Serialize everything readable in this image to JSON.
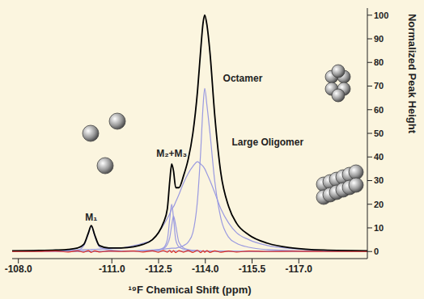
{
  "chart_data": {
    "type": "line",
    "x_label": "¹⁹F Chemical Shift (ppm)",
    "y_label": "Normalized Peak Height",
    "x": [
      -107.8,
      -108.5,
      -109.2,
      -109.6,
      -109.9,
      -110.1,
      -110.25,
      -110.34,
      -110.45,
      -110.6,
      -110.9,
      -111.3,
      -111.7,
      -112.0,
      -112.3,
      -112.5,
      -112.65,
      -112.78,
      -112.86,
      -112.92,
      -112.98,
      -113.05,
      -113.15,
      -113.3,
      -113.45,
      -113.6,
      -113.75,
      -113.85,
      -113.93,
      -113.98,
      -114.05,
      -114.15,
      -114.3,
      -114.5,
      -114.75,
      -115.0,
      -115.4,
      -116.0,
      -116.8,
      -117.8,
      -119.2
    ],
    "series": [
      {
        "color": "#9a9ae0",
        "values": [
          0.1,
          0.1,
          0.2,
          0.3,
          0.5,
          2.5,
          7.5,
          10.8,
          6.5,
          2,
          0.7,
          0.3,
          0.2,
          0.1,
          0.1,
          0.1,
          0.1,
          0.1,
          0.1,
          0.1,
          0.1,
          0.1,
          0.1,
          0.1,
          0.1,
          0.1,
          0.1,
          0.1,
          0.1,
          0.1,
          0.1,
          0.1,
          0.1,
          0.1,
          0.1,
          0.1,
          0.1,
          0.1,
          0.1,
          0.1,
          0.1
        ]
      },
      {
        "color": "#9a9ae0",
        "values": [
          0,
          0,
          0,
          0,
          0,
          0,
          0,
          0,
          0,
          0,
          0.1,
          0.1,
          0.2,
          0.3,
          0.5,
          0.8,
          1.5,
          5,
          14,
          20,
          14,
          5,
          2,
          1,
          0.6,
          0.4,
          0.3,
          0.2,
          0.2,
          0.2,
          0.2,
          0.1,
          0.1,
          0.1,
          0.1,
          0,
          0,
          0,
          0,
          0,
          0
        ]
      },
      {
        "color": "#9a9ae0",
        "values": [
          0,
          0,
          0,
          0,
          0,
          0,
          0,
          0,
          0,
          0,
          0.1,
          0.1,
          0.2,
          0.3,
          0.4,
          0.6,
          1.2,
          3,
          6,
          11,
          15,
          11,
          4,
          1.5,
          0.8,
          0.5,
          0.4,
          0.3,
          0.2,
          0.2,
          0.2,
          0.1,
          0.1,
          0.1,
          0.1,
          0,
          0,
          0,
          0,
          0,
          0
        ]
      },
      {
        "color": "#9a9ae0",
        "values": [
          0.2,
          0.3,
          0.4,
          0.6,
          0.7,
          0.8,
          0.8,
          0.9,
          0.9,
          1,
          1.2,
          1.5,
          2.5,
          3.5,
          5,
          8,
          11,
          14,
          16,
          18,
          19,
          21,
          24,
          29,
          33,
          36,
          38,
          37,
          36,
          35,
          33,
          30,
          25,
          18,
          12,
          8,
          5,
          2.5,
          1.2,
          0.5,
          0.2
        ]
      },
      {
        "color": "#9a9ae0",
        "values": [
          0,
          0,
          0,
          0,
          0.1,
          0.1,
          0.1,
          0.1,
          0.1,
          0.1,
          0.2,
          0.2,
          0.3,
          0.4,
          0.6,
          0.8,
          1,
          1.2,
          1.3,
          1.4,
          1.4,
          1.4,
          1.8,
          2.5,
          4,
          8,
          22,
          42,
          62,
          69,
          62,
          50,
          30,
          14,
          6,
          3.5,
          1.8,
          0.8,
          0.4,
          0.2,
          0.1
        ]
      },
      {
        "color": "#000000",
        "values": [
          0.3,
          0.4,
          0.6,
          0.9,
          1.5,
          3,
          8,
          11,
          7,
          2.5,
          1.5,
          1.5,
          2,
          3,
          5,
          8,
          12,
          18,
          30,
          37,
          34,
          27,
          27,
          32,
          39,
          50,
          68,
          85,
          97,
          100,
          96,
          84,
          58,
          33,
          19,
          12,
          7,
          3.5,
          1.5,
          0.6,
          0.3
        ]
      },
      {
        "color": "#e03020",
        "values": [
          0,
          0,
          0.2,
          -0.2,
          0.3,
          -0.3,
          0.4,
          -0.4,
          0.3,
          -0.2,
          0.2,
          0,
          0.2,
          -0.2,
          0.3,
          -0.3,
          0.4,
          -0.3,
          0.5,
          -0.4,
          0.4,
          -0.5,
          0.4,
          -0.3,
          0.4,
          -0.4,
          0.5,
          -0.5,
          0.4,
          -0.3,
          0.4,
          -0.4,
          0.3,
          -0.3,
          0.2,
          -0.2,
          0.2,
          0,
          0.1,
          0,
          0
        ]
      }
    ],
    "xlim": [
      -107.8,
      -119.2
    ],
    "xticks": [
      {
        "value": -108,
        "label": "-108.0"
      },
      {
        "value": -111,
        "label": "-111.0"
      },
      {
        "value": -112.5,
        "label": "-112.5"
      },
      {
        "value": -114,
        "label": "-114.0"
      },
      {
        "value": -115.5,
        "label": "-115.5"
      },
      {
        "value": -117,
        "label": "-117.0"
      }
    ],
    "ylim": [
      -3,
      103
    ],
    "yticks": [
      0,
      10,
      20,
      30,
      40,
      50,
      60,
      70,
      80,
      90,
      100
    ],
    "grid": false,
    "annotations": [
      {
        "text": "M₁",
        "x": -110.34,
        "y": 13
      },
      {
        "text": "M₂+M₃",
        "x": -112.92,
        "y": 40
      },
      {
        "text": "Octamer",
        "x": -115.2,
        "y": 72
      },
      {
        "text": "Large Oligomer",
        "x": -116.0,
        "y": 45
      }
    ]
  }
}
